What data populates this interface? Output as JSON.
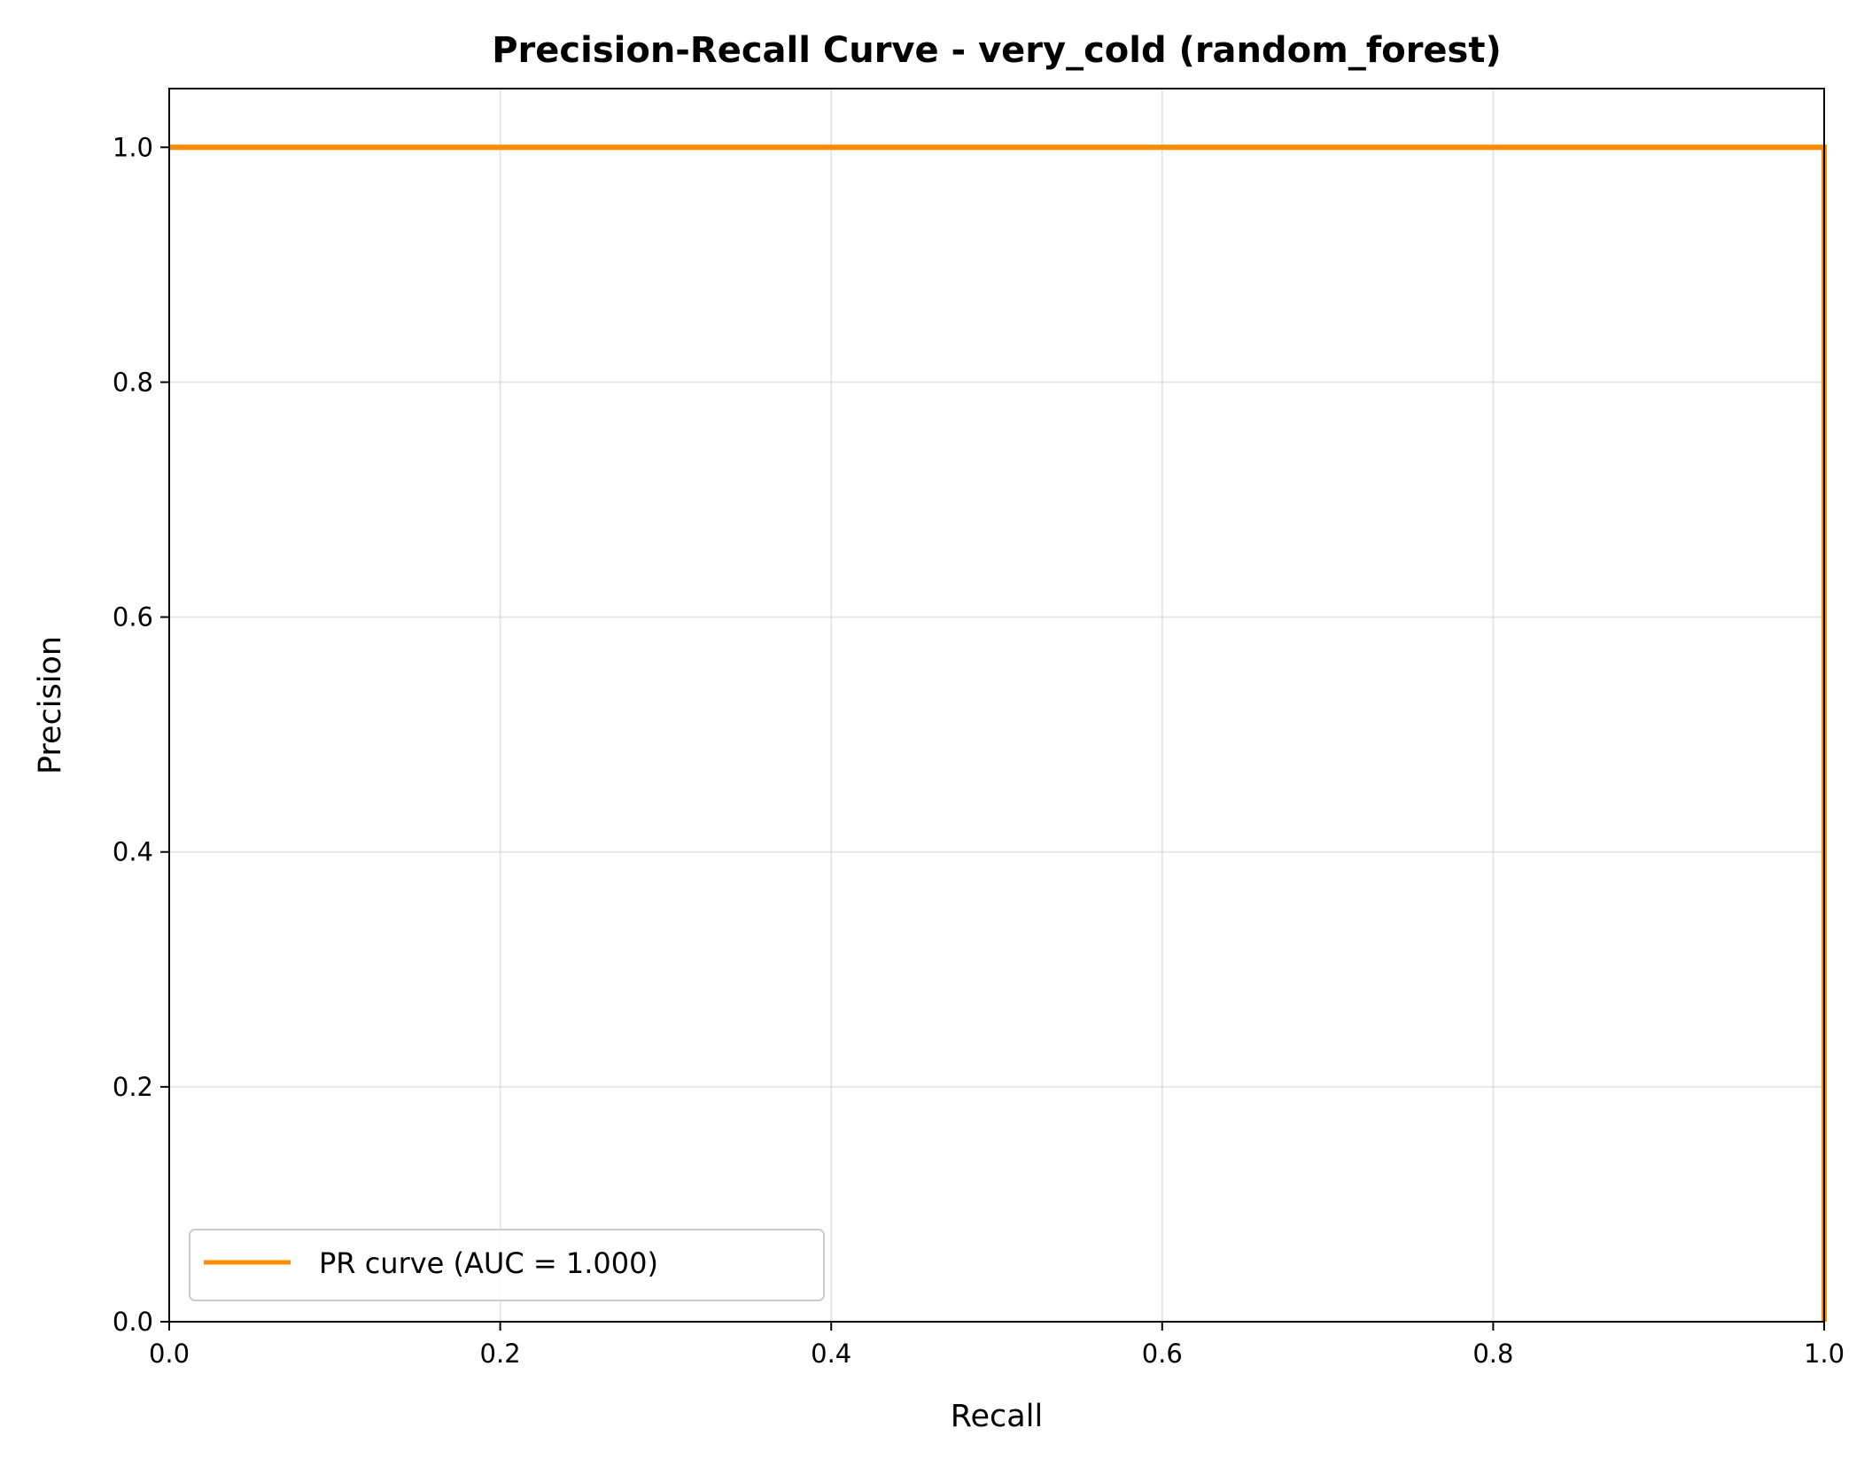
{
  "chart_data": {
    "type": "line",
    "title": "Precision-Recall Curve - very_cold (random_forest)",
    "xlabel": "Recall",
    "ylabel": "Precision",
    "xlim": [
      0.0,
      1.0
    ],
    "ylim": [
      0.0,
      1.05
    ],
    "xticks": [
      0.0,
      0.2,
      0.4,
      0.6,
      0.8,
      1.0
    ],
    "xtick_labels": [
      "0.0",
      "0.2",
      "0.4",
      "0.6",
      "0.8",
      "1.0"
    ],
    "yticks": [
      0.0,
      0.2,
      0.4,
      0.6,
      0.8,
      1.0
    ],
    "ytick_labels": [
      "0.0",
      "0.2",
      "0.4",
      "0.6",
      "0.8",
      "1.0"
    ],
    "grid": true,
    "legend_position": "lower-left",
    "series": [
      {
        "name": "PR curve (AUC = 1.000)",
        "color": "#ff8c00",
        "x": [
          0.0,
          1.0,
          1.0
        ],
        "y": [
          1.0,
          1.0,
          0.0
        ]
      }
    ]
  }
}
